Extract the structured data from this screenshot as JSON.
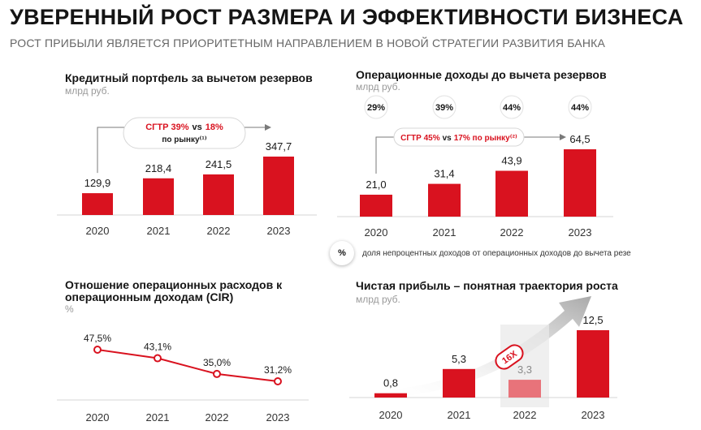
{
  "header": {
    "title": "УВЕРЕННЫЙ РОСТ РАЗМЕРА И ЭФФЕКТИВНОСТИ БИЗНЕСА",
    "subtitle": "РОСТ ПРИБЫЛИ ЯВЛЯЕТСЯ ПРИОРИТЕТНЫМ НАПРАВЛЕНИЕМ В НОВОЙ СТРАТЕГИИ РАЗВИТИЯ БАНКА"
  },
  "colors": {
    "accent": "#d9121f",
    "accent_light": "#e8737a",
    "line": "#d9121f"
  },
  "panels": {
    "loan": {
      "title": "Кредитный портфель за вычетом резервов",
      "unit": "млрд руб."
    },
    "income": {
      "title": "Операционные доходы до вычета резервов",
      "unit": "млрд руб."
    },
    "cir": {
      "title_line1": "Отношение операционных расходов к",
      "title_line2": "операционным доходам (CIR)",
      "unit": "%"
    },
    "profit": {
      "title": "Чистая прибыль – понятная траектория роста",
      "unit": "млрд руб."
    }
  },
  "legend": {
    "symbol": "%",
    "text": "доля непроцентных доходов от операционных доходов до вычета резе"
  },
  "chart_data": [
    {
      "type": "bar",
      "title": "Кредитный портфель за вычетом резервов",
      "unit": "млрд руб.",
      "categories": [
        "2020",
        "2021",
        "2022",
        "2023"
      ],
      "values": [
        129.9,
        218.4,
        241.5,
        347.7
      ],
      "labels": [
        "129,9",
        "218,4",
        "241,5",
        "347,7"
      ],
      "annotation": {
        "main": "СГТР 39%",
        "vs": "vs",
        "market": "18%",
        "note": "по рынку⁽¹⁾"
      }
    },
    {
      "type": "bar",
      "title": "Операционные доходы до вычета резервов",
      "unit": "млрд руб.",
      "categories": [
        "2020",
        "2021",
        "2022",
        "2023"
      ],
      "values": [
        21.0,
        31.4,
        43.9,
        64.5
      ],
      "labels": [
        "21,0",
        "31,4",
        "43,9",
        "64,5"
      ],
      "shares": [
        "29%",
        "39%",
        "44%",
        "44%"
      ],
      "annotation": {
        "main": "СГТР 45%",
        "vs": "vs",
        "market": "17% по рынку⁽²⁾"
      }
    },
    {
      "type": "line",
      "title": "Отношение операционных расходов к операционным доходам (CIR)",
      "unit": "%",
      "categories": [
        "2020",
        "2021",
        "2022",
        "2023"
      ],
      "values": [
        47.5,
        43.1,
        35.0,
        31.2
      ],
      "labels": [
        "47,5%",
        "43,1%",
        "35,0%",
        "31,2%"
      ]
    },
    {
      "type": "bar",
      "title": "Чистая прибыль – понятная траектория роста",
      "unit": "млрд руб.",
      "categories": [
        "2020",
        "2021",
        "2022",
        "2023"
      ],
      "values": [
        0.8,
        5.3,
        3.3,
        12.5
      ],
      "labels": [
        "0,8",
        "5,3",
        "3,3",
        "12,5"
      ],
      "highlight": "2022",
      "badge": "16X"
    }
  ]
}
